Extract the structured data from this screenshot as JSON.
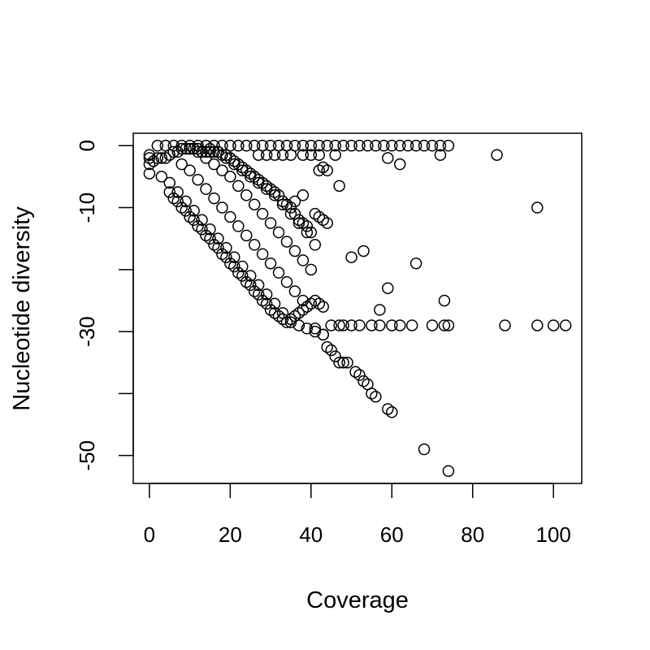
{
  "chart_data": {
    "type": "scatter",
    "title": "",
    "xlabel": "Coverage",
    "ylabel": "Nucleotide diversity",
    "xlim": [
      -4,
      107
    ],
    "ylim": [
      -54.5,
      2
    ],
    "x_ticks": [
      0,
      20,
      40,
      60,
      80,
      100
    ],
    "y_ticks": [
      0,
      -10,
      -20,
      -30,
      -40,
      -50
    ],
    "y_tick_labels": [
      "0",
      "-10",
      "",
      "-30",
      "",
      "-50"
    ],
    "grid": false,
    "legend": "none",
    "marker": "open-circle",
    "series": [
      {
        "x": [
          2,
          4,
          6,
          8,
          10,
          12,
          14,
          16,
          18,
          20,
          22,
          24,
          26,
          28,
          30,
          32,
          34,
          36,
          38,
          40,
          42,
          44,
          46,
          48,
          50,
          52,
          54,
          56,
          58,
          60,
          62,
          64,
          66,
          68,
          70,
          72,
          74,
          86,
          72,
          62,
          59,
          46,
          42,
          40,
          38,
          35,
          33,
          31,
          29,
          27,
          96,
          47,
          44,
          43,
          42,
          38,
          36,
          66,
          53,
          50,
          41,
          45,
          47,
          48,
          50,
          52,
          55,
          57,
          60,
          62,
          65,
          70,
          73,
          74,
          88,
          96,
          100,
          103,
          41,
          43,
          44,
          45,
          46,
          47,
          48,
          49,
          51,
          52,
          53,
          54,
          55,
          56,
          59,
          60,
          68,
          74,
          73,
          57,
          59,
          0,
          0,
          0,
          0,
          1,
          2,
          3,
          4,
          5,
          6,
          7,
          8,
          9,
          10,
          11,
          12,
          13,
          14,
          15,
          16,
          17,
          18,
          19,
          20,
          21,
          22,
          23,
          24,
          25,
          26,
          27,
          28,
          29,
          30,
          31,
          32,
          33,
          34,
          35,
          36,
          37,
          38,
          39,
          40,
          41,
          42,
          43,
          44,
          3,
          5,
          7,
          9,
          11,
          13,
          15,
          17,
          19,
          21,
          23,
          25,
          27,
          29,
          31,
          33,
          35,
          37,
          39,
          41,
          43,
          8,
          10,
          12,
          14,
          16,
          18,
          20,
          22,
          24,
          26,
          28,
          30,
          32,
          34,
          36,
          38,
          12,
          14,
          16,
          18,
          20,
          22,
          24,
          26,
          28,
          30,
          32,
          34,
          36,
          38,
          40,
          15,
          17,
          19,
          21,
          23,
          25,
          27,
          29,
          31,
          33,
          35,
          37,
          39,
          5,
          6,
          7,
          8,
          9,
          10,
          11,
          12,
          13,
          14,
          15,
          16,
          17,
          18,
          19,
          20,
          21,
          22,
          23,
          24,
          25,
          26,
          27,
          28,
          29,
          30,
          31,
          32,
          33,
          34,
          35,
          36,
          37,
          38,
          39,
          40,
          41,
          42,
          43
        ],
        "y": [
          0,
          0,
          0,
          0,
          0,
          0,
          0,
          0,
          0,
          0,
          0,
          0,
          0,
          0,
          0,
          0,
          0,
          0,
          0,
          0,
          0,
          0,
          0,
          0,
          0,
          0,
          0,
          0,
          0,
          0,
          0,
          0,
          0,
          0,
          0,
          0,
          0,
          -1.5,
          -1.5,
          -3,
          -2,
          -1.5,
          -1.5,
          -1.5,
          -1.5,
          -1.5,
          -1.5,
          -1.5,
          -1.5,
          -1.5,
          -10,
          -6.5,
          -4,
          -3.5,
          -4,
          -8,
          -9,
          -19,
          -17,
          -18,
          -16,
          -29,
          -29,
          -29,
          -29,
          -29,
          -29,
          -29,
          -29,
          -29,
          -29,
          -29,
          -29,
          -29,
          -29,
          -29,
          -29,
          -29,
          -29.5,
          -30.5,
          -32.5,
          -33,
          -34,
          -35,
          -35,
          -35,
          -36.5,
          -37,
          -38,
          -38.5,
          -40,
          -40.5,
          -42.5,
          -43,
          -49,
          -52.5,
          -25,
          -26.5,
          -23,
          -1.5,
          -2,
          -3,
          -4.5,
          -2.5,
          -2,
          -2,
          -2,
          -1.5,
          -1,
          -1,
          -0.5,
          -0.5,
          -0.5,
          -0.5,
          -0.5,
          -1,
          -1,
          -1,
          -1,
          -1,
          -1.5,
          -1.5,
          -2,
          -2.5,
          -3,
          -3.5,
          -4,
          -4.5,
          -5,
          -5.5,
          -6,
          -6.5,
          -7,
          -7.5,
          -8,
          -9,
          -9.5,
          -10,
          -11,
          -12,
          -12.5,
          -13,
          -14,
          -11,
          -11.5,
          -12,
          -12.5,
          -5,
          -6,
          -7.5,
          -9,
          -10.5,
          -12,
          -13.5,
          -15,
          -16.5,
          -18,
          -19.5,
          -21,
          -22.5,
          -24,
          -25.5,
          -27,
          -28.5,
          -29,
          -29.5,
          -30,
          -30.5,
          -3,
          -4,
          -5.5,
          -7,
          -8.5,
          -10,
          -11.5,
          -13,
          -14.5,
          -16,
          -17.5,
          -19,
          -20.5,
          -22,
          -23.5,
          -25,
          -1,
          -2,
          -3,
          -4,
          -5,
          -6.5,
          -8,
          -9.5,
          -11,
          -12.5,
          -14,
          -15.5,
          -17,
          -18.5,
          -20,
          -0.5,
          -1,
          -2,
          -3,
          -4,
          -5,
          -6,
          -7,
          -8,
          -9.5,
          -11,
          -12.5,
          -14,
          -7.5,
          -8.5,
          -9,
          -10,
          -10.5,
          -11.5,
          -12,
          -13,
          -13.5,
          -14.5,
          -15,
          -16,
          -16.5,
          -17.5,
          -18,
          -19,
          -19.5,
          -20.5,
          -21,
          -22,
          -22.5,
          -23.5,
          -24,
          -25,
          -25.5,
          -26.5,
          -27,
          -27.5,
          -28,
          -28.5,
          -28,
          -27.5,
          -27,
          -26.5,
          -26,
          -25.5,
          -25,
          -25.5,
          -26
        ]
      }
    ]
  }
}
